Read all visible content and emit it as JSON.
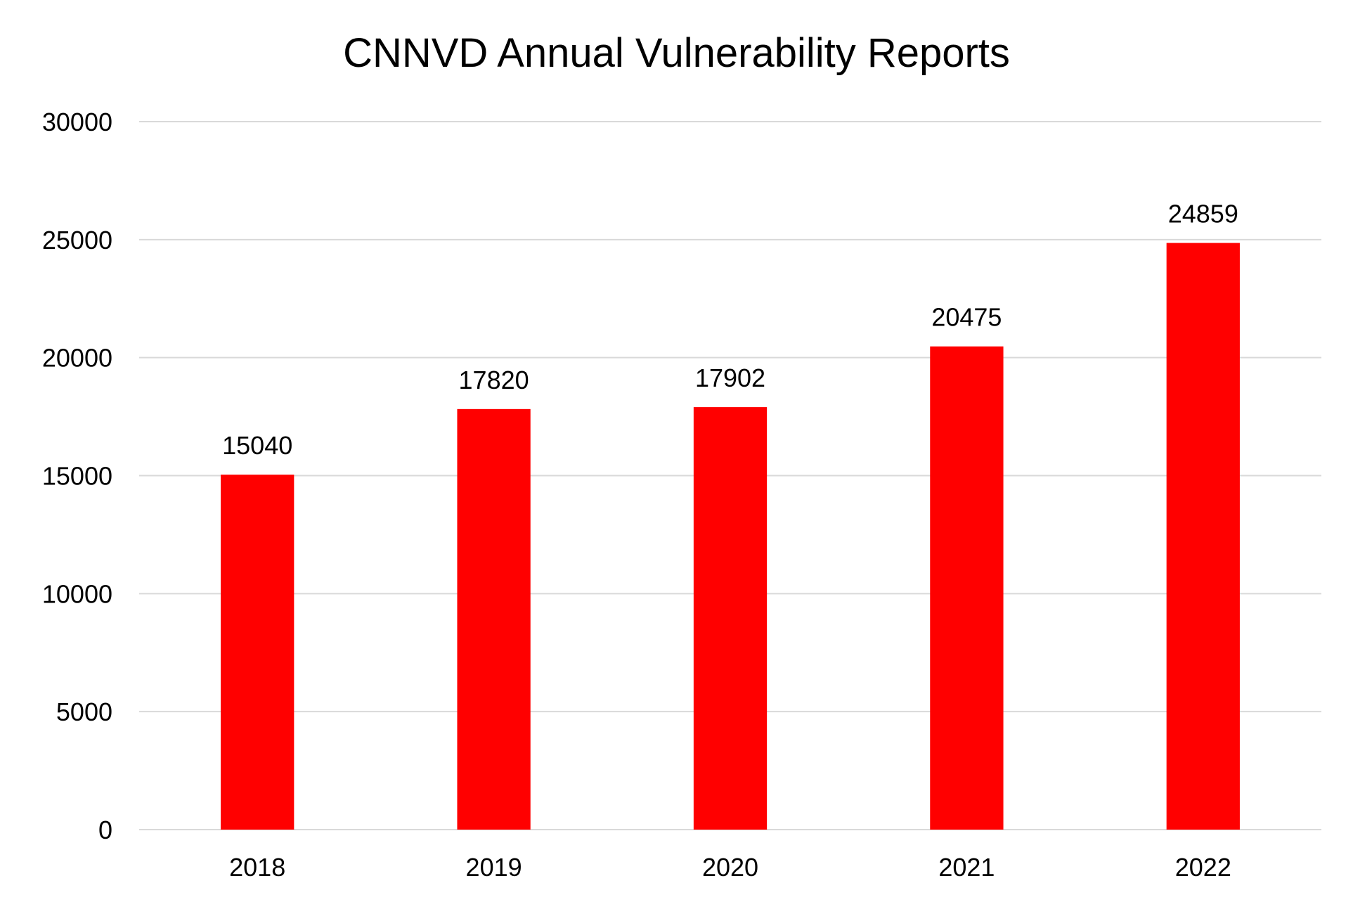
{
  "chart_data": {
    "type": "bar",
    "title": "CNNVD Annual Vulnerability Reports",
    "categories": [
      "2018",
      "2019",
      "2020",
      "2021",
      "2022"
    ],
    "values": [
      15040,
      17820,
      17902,
      20475,
      24859
    ],
    "data_labels": [
      "15040",
      "17820",
      "17902",
      "20475",
      "24859"
    ],
    "ylim": [
      0,
      30000
    ],
    "yticks": [
      0,
      5000,
      10000,
      15000,
      20000,
      25000,
      30000
    ],
    "ytick_labels": [
      "0",
      "5000",
      "10000",
      "15000",
      "20000",
      "25000",
      "30000"
    ],
    "xlabel": "",
    "ylabel": "",
    "grid": true,
    "legend": "none",
    "bar_color": "#ff0000",
    "grid_color": "#d9d9d9"
  }
}
